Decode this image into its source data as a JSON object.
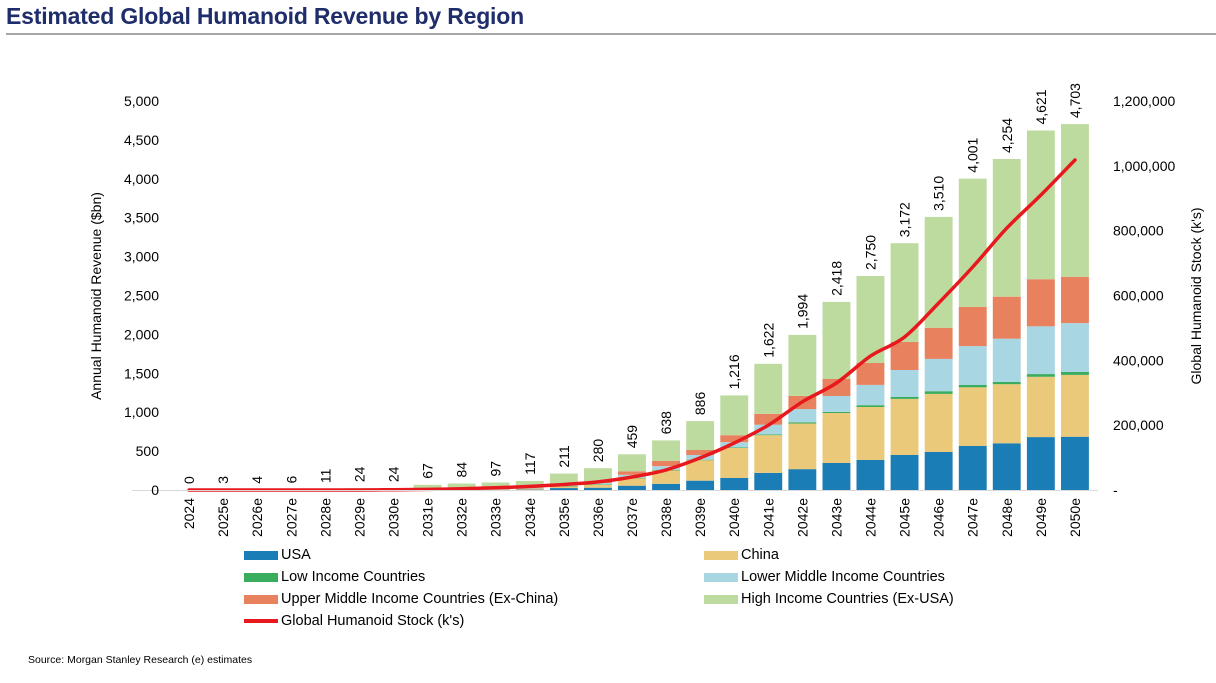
{
  "title": "Estimated Global Humanoid Revenue by Region",
  "source": "Source: Morgan Stanley Research (e)  estimates",
  "colors": {
    "usa": "#1a7db5",
    "china": "#ebc97a",
    "low_income": "#3aac5d",
    "lower_middle": "#a8d7e3",
    "upper_middle": "#e8815e",
    "high_income": "#bddb9f",
    "stock_line": "#e8191e"
  },
  "legend": [
    {
      "key": "usa",
      "label": "USA",
      "kind": "bar"
    },
    {
      "key": "china",
      "label": "China",
      "kind": "bar"
    },
    {
      "key": "low_income",
      "label": "Low Income Countries",
      "kind": "bar"
    },
    {
      "key": "lower_middle",
      "label": "Lower Middle Income Countries",
      "kind": "bar"
    },
    {
      "key": "upper_middle",
      "label": "Upper Middle Income Countries (Ex-China)",
      "kind": "bar"
    },
    {
      "key": "high_income",
      "label": "High Income Countries (Ex-USA)",
      "kind": "bar"
    },
    {
      "key": "stock_line",
      "label": "Global Humanoid Stock (k's)",
      "kind": "line"
    }
  ],
  "chart_data": {
    "type": "bar",
    "subtype": "stacked-bar-with-line-secondary-axis",
    "title": "Estimated Global Humanoid Revenue by Region",
    "xlabel": "",
    "ylabel": "Annual Humanoid Revenue ($bn)",
    "y2label": "Global Humanoid Stock (k's)",
    "ylim": [
      0,
      5000
    ],
    "y2lim": [
      0,
      1200000
    ],
    "yticks": [
      "0",
      "500",
      "1,000",
      "1,500",
      "2,000",
      "2,500",
      "3,000",
      "3,500",
      "4,000",
      "4,500",
      "5,000"
    ],
    "y2ticks": [
      "-",
      "200,000",
      "400,000",
      "600,000",
      "800,000",
      "1,000,000",
      "1,200,000"
    ],
    "grid": false,
    "legend_position": "bottom",
    "categories": [
      "2024",
      "2025e",
      "2026e",
      "2027e",
      "2028e",
      "2029e",
      "2030e",
      "2031e",
      "2032e",
      "2033e",
      "2034e",
      "2035e",
      "2036e",
      "2037e",
      "2038e",
      "2039e",
      "2040e",
      "2041e",
      "2042e",
      "2043e",
      "2044e",
      "2045e",
      "2046e",
      "2047e",
      "2048e",
      "2049e",
      "2050e"
    ],
    "totals": [
      0,
      3,
      4,
      6,
      11,
      24,
      24,
      67,
      84,
      97,
      117,
      211,
      280,
      459,
      638,
      886,
      1216,
      1622,
      1994,
      2418,
      2750,
      3172,
      3510,
      4001,
      4254,
      4621,
      4703
    ],
    "total_labels": [
      "0",
      "3",
      "4",
      "6",
      "11",
      "24",
      "24",
      "67",
      "84",
      "97",
      "117",
      "211",
      "280",
      "459",
      "638",
      "886",
      "1,216",
      "1,622",
      "1,994",
      "2,418",
      "2,750",
      "3,172",
      "3,510",
      "4,001",
      "4,254",
      "4,621",
      "4,703"
    ],
    "series": [
      {
        "key": "usa",
        "name": "USA",
        "values": [
          0,
          0,
          0,
          0,
          0,
          0,
          0,
          1,
          2,
          3,
          5,
          25,
          30,
          55,
          80,
          120,
          155,
          220,
          268,
          347,
          386,
          450,
          490,
          565,
          600,
          680,
          685
        ]
      },
      {
        "key": "china",
        "name": "China",
        "values": [
          0,
          0,
          0,
          0,
          0,
          0,
          0,
          2,
          4,
          6,
          10,
          25,
          42,
          100,
          175,
          265,
          385,
          485,
          587,
          643,
          681,
          720,
          745,
          755,
          760,
          775,
          795
        ]
      },
      {
        "key": "low_income",
        "name": "Low Income Countries",
        "values": [
          0,
          0,
          0,
          0,
          0,
          0,
          0,
          0,
          0,
          0,
          0,
          1,
          1,
          2,
          3,
          5,
          8,
          10,
          15,
          13,
          23,
          25,
          35,
          30,
          30,
          35,
          37
        ]
      },
      {
        "key": "lower_middle",
        "name": "Lower Middle Income Countries",
        "values": [
          0,
          0,
          0,
          0,
          0,
          0,
          0,
          1,
          2,
          3,
          4,
          11,
          17,
          38,
          47,
          60,
          67,
          125,
          170,
          205,
          260,
          347,
          415,
          500,
          555,
          615,
          628
        ]
      },
      {
        "key": "upper_middle",
        "name": "Upper Middle Income Countries (Ex-China)",
        "values": [
          0,
          0,
          0,
          0,
          0,
          0,
          0,
          1,
          2,
          3,
          4,
          13,
          20,
          45,
          70,
          65,
          90,
          140,
          170,
          219,
          282,
          360,
          400,
          505,
          540,
          605,
          595
        ]
      },
      {
        "key": "high_income",
        "name": "High Income Countries (Ex-USA)",
        "values": [
          0,
          3,
          4,
          6,
          11,
          24,
          24,
          62,
          74,
          82,
          94,
          136,
          170,
          219,
          263,
          371,
          511,
          642,
          784,
          991,
          1118,
          1270,
          1425,
          1646,
          1769,
          1911,
          1963
        ]
      }
    ],
    "line": {
      "key": "stock_line",
      "name": "Global Humanoid Stock (k's)",
      "axis": "secondary",
      "values": [
        0,
        0,
        0,
        0,
        0,
        0,
        1000,
        2000,
        4000,
        7000,
        11000,
        17000,
        25000,
        40000,
        62000,
        99000,
        145000,
        200000,
        272000,
        330000,
        413000,
        472000,
        577000,
        688000,
        808000,
        910000,
        1018000
      ]
    }
  }
}
